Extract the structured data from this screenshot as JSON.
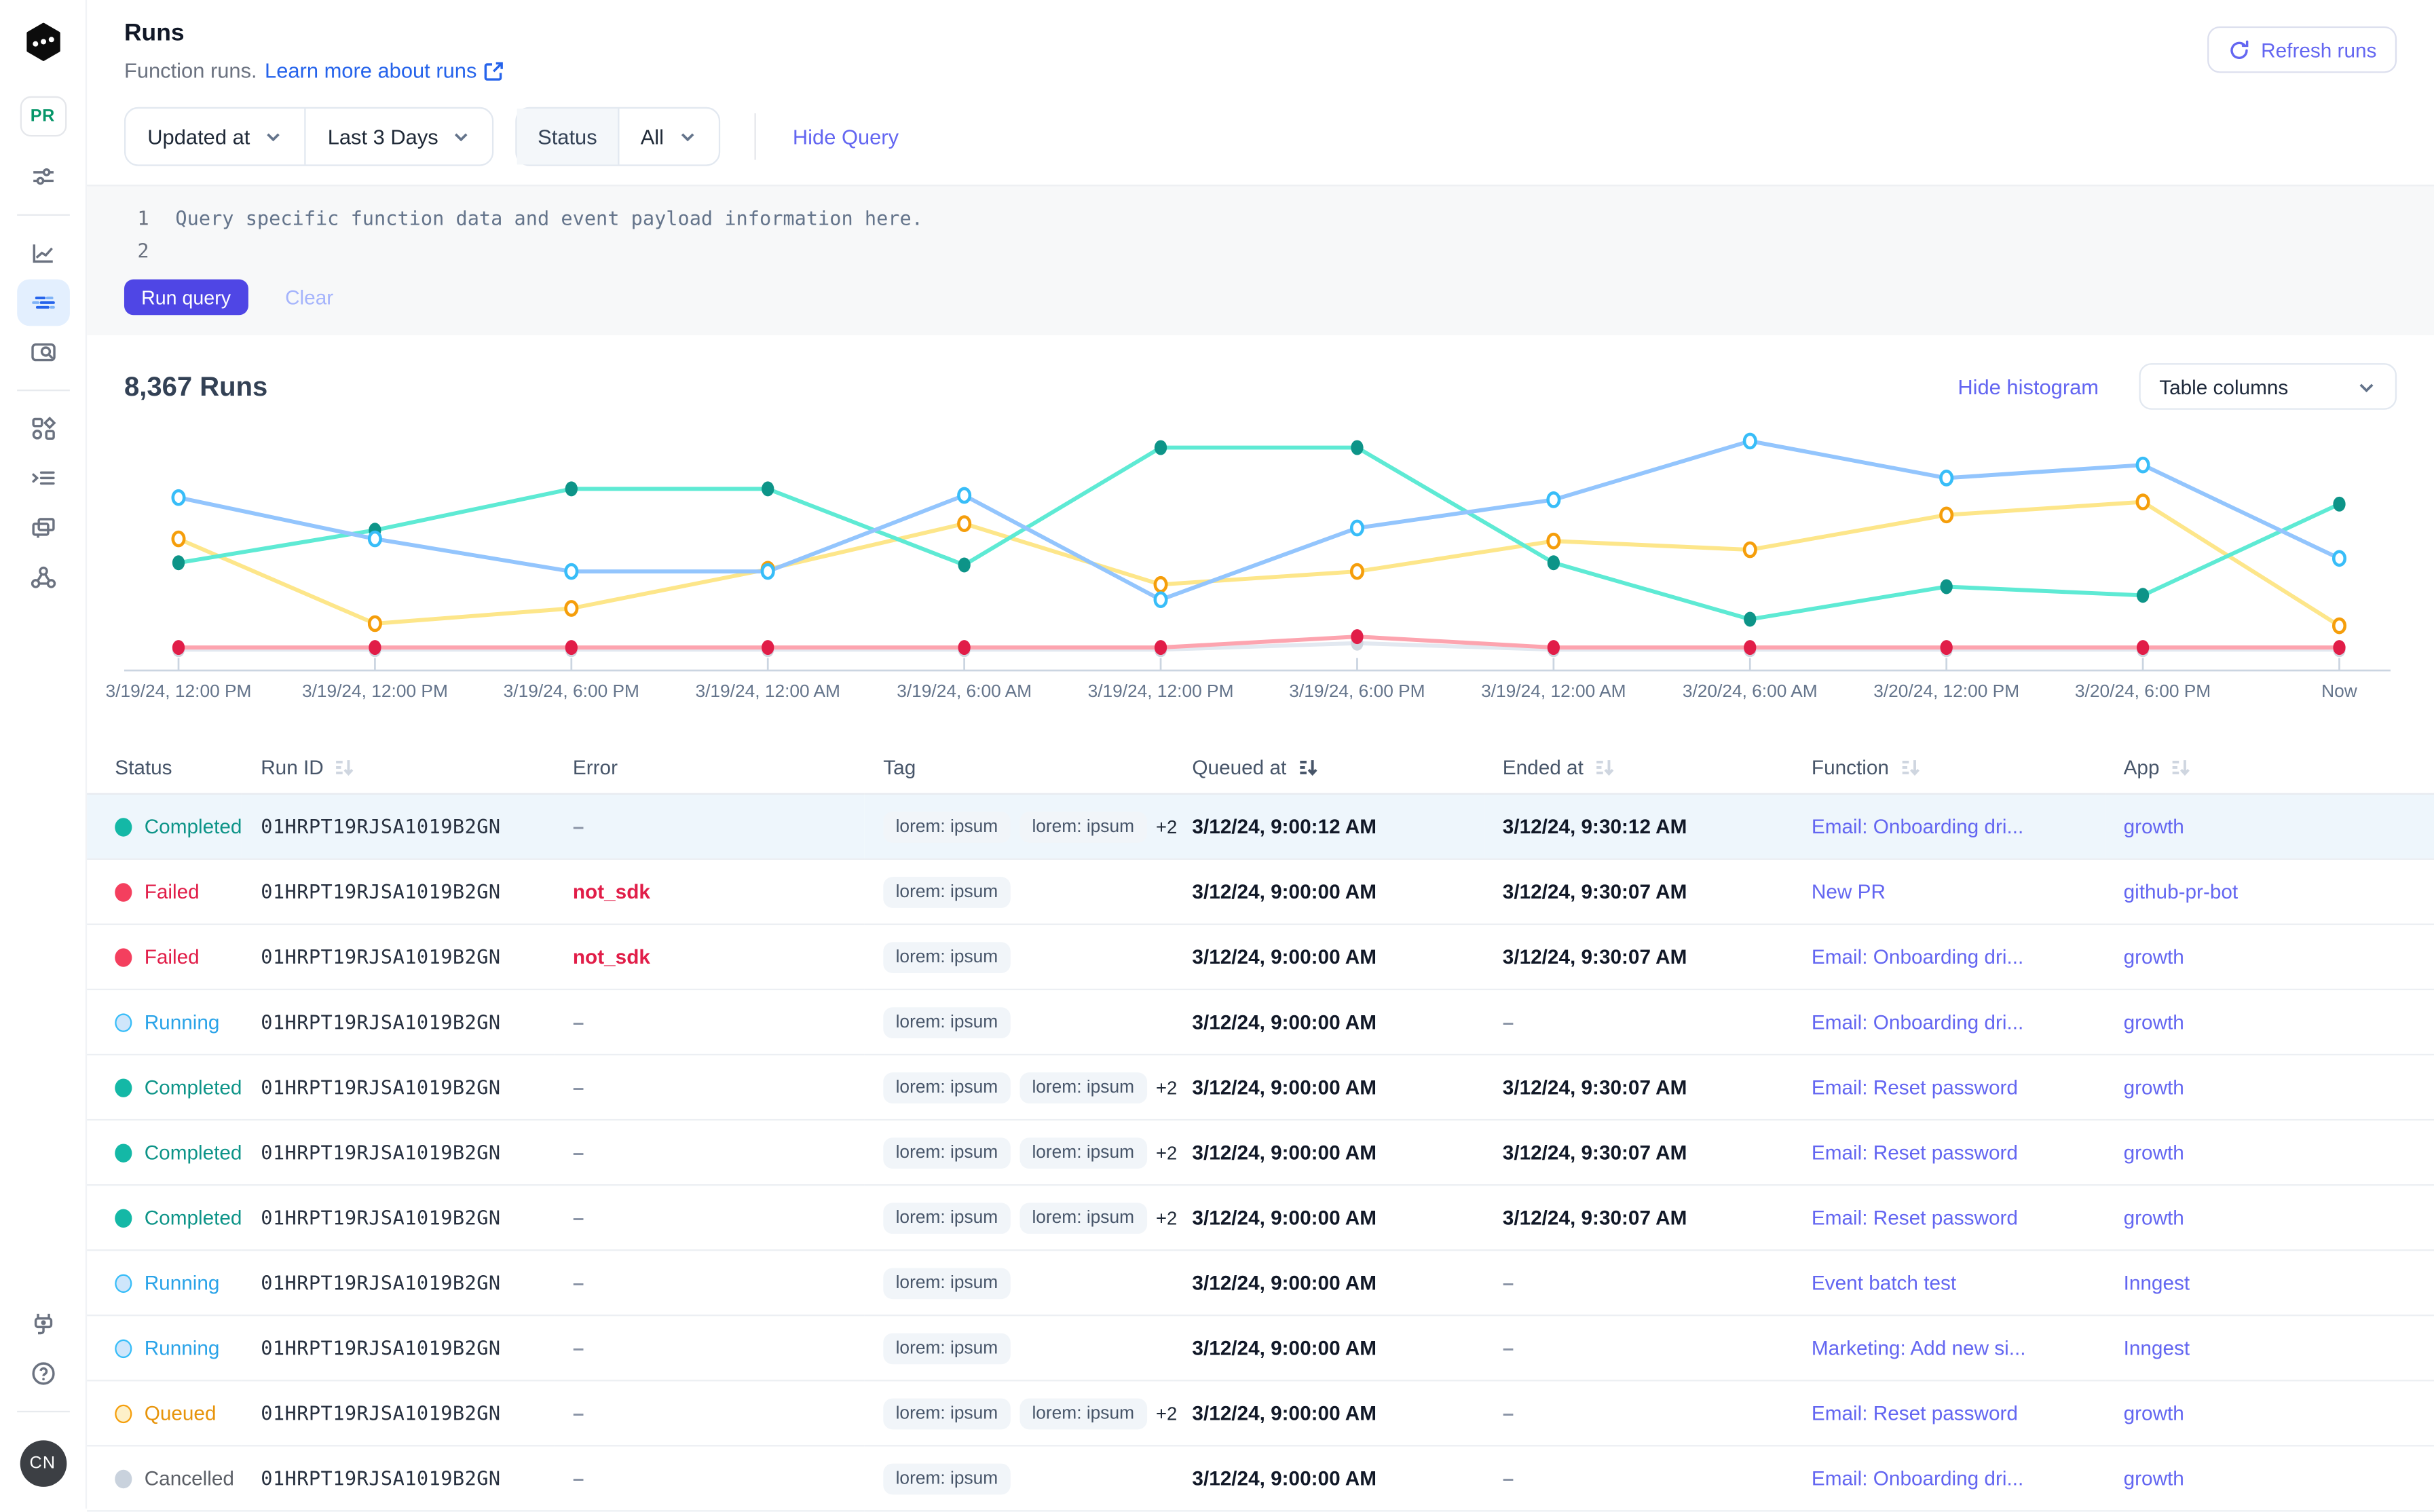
{
  "sidebar": {
    "logo_icon": "inngest-logo",
    "env_badge": "PR",
    "nav_icons": [
      "filter-sliders-icon",
      "metrics-icon",
      "runs-icon",
      "event-search-icon",
      "apps-icon",
      "events-icon",
      "functions-icon",
      "webhooks-icon"
    ],
    "active_nav": "runs-icon",
    "footer_icons": [
      "integrations-plug-icon",
      "help-icon"
    ],
    "user_initials": "CN"
  },
  "header": {
    "title": "Runs",
    "subtitle": "Function runs.",
    "learn_more_label": "Learn more about runs",
    "refresh_label": "Refresh runs"
  },
  "filters": {
    "field_value": "Updated at",
    "range_value": "Last 3 Days",
    "status_label": "Status",
    "status_value": "All",
    "hide_query_label": "Hide Query"
  },
  "query": {
    "line_numbers": [
      "1",
      "2"
    ],
    "lines": [
      "Query specific function data and event payload information here.",
      ""
    ],
    "run_label": "Run query",
    "clear_label": "Clear"
  },
  "results": {
    "count_label": "8,367 Runs",
    "hide_histogram_label": "Hide histogram",
    "table_columns_label": "Table columns"
  },
  "chart_data": {
    "type": "line",
    "title": "",
    "xlabel": "",
    "ylabel": "",
    "grid": false,
    "legend": "none",
    "ylim": [
      0,
      100
    ],
    "x_labels": [
      "3/19/24, 12:00 PM",
      "3/19/24, 12:00 PM",
      "3/19/24, 6:00 PM",
      "3/19/24, 12:00 AM",
      "3/19/24, 6:00 AM",
      "3/19/24, 12:00 PM",
      "3/19/24, 6:00 PM",
      "3/19/24, 12:00 AM",
      "3/20/24, 6:00 AM",
      "3/20/24, 12:00 PM",
      "3/20/24, 6:00 PM",
      "Now"
    ],
    "series": [
      {
        "name": "Cancelled",
        "line_color": "#e2e8f0",
        "dot_color": "#cfd6df",
        "marker": "solid",
        "values": [
          1,
          1,
          1,
          1,
          1,
          1,
          4,
          1,
          1,
          1,
          1,
          1
        ]
      },
      {
        "name": "Failed",
        "line_color": "#fda4af",
        "dot_color": "#e11d48",
        "marker": "solid",
        "values": [
          2,
          2,
          2,
          2,
          2,
          2,
          7,
          2,
          2,
          2,
          2,
          2
        ]
      },
      {
        "name": "Queued",
        "line_color": "#fde68a",
        "dot_color": "#f59e0b",
        "marker": "hollow",
        "values": [
          52,
          13,
          20,
          38,
          59,
          31,
          37,
          51,
          47,
          63,
          69,
          12
        ]
      },
      {
        "name": "Completed",
        "line_color": "#5eead4",
        "dot_color": "#0d9488",
        "marker": "solid",
        "values": [
          41,
          56,
          75,
          75,
          40,
          94,
          94,
          41,
          15,
          30,
          26,
          68
        ]
      },
      {
        "name": "Running",
        "line_color": "#93c5fd",
        "dot_color": "#38bdf8",
        "marker": "hollow",
        "values": [
          71,
          52,
          37,
          37,
          72,
          24,
          57,
          70,
          97,
          80,
          86,
          43
        ]
      }
    ],
    "axis_color": "#cbd5e1",
    "label_color": "#64748b"
  },
  "table": {
    "columns": [
      {
        "label": "Status",
        "sort": null
      },
      {
        "label": "Run ID",
        "sort": "inactive"
      },
      {
        "label": "Error",
        "sort": null
      },
      {
        "label": "Tag",
        "sort": null
      },
      {
        "label": "Queued at",
        "sort": "active"
      },
      {
        "label": "Ended at",
        "sort": "inactive"
      },
      {
        "label": "Function",
        "sort": "inactive"
      },
      {
        "label": "App",
        "sort": "inactive"
      }
    ],
    "status_styles": {
      "completed": {
        "dot": "#14b8a6",
        "border": "",
        "text": "#0d9488"
      },
      "failed": {
        "dot": "#f43f5e",
        "border": "",
        "text": "#e11d48"
      },
      "running": {
        "dot": "#cfe6fb",
        "border": "#38bdf8",
        "text": "#2aa3e8"
      },
      "queued": {
        "dot": "#fdf0c9",
        "border": "#f59e0b",
        "text": "#e7940b"
      },
      "cancelled": {
        "dot": "#c9d2dd",
        "border": "",
        "text": "#5b5f66"
      }
    },
    "rows": [
      {
        "status": "Completed",
        "type": "completed",
        "run_id": "01HRPT19RJSA1019B2GN",
        "error": "–",
        "tags": [
          "lorem: ipsum",
          "lorem: ipsum"
        ],
        "tags_more": "+2",
        "queued_at": "3/12/24, 9:00:12 AM",
        "ended_at": "3/12/24, 9:30:12 AM",
        "function": "Email: Onboarding dri...",
        "app": "growth",
        "highlighted": true
      },
      {
        "status": "Failed",
        "type": "failed",
        "run_id": "01HRPT19RJSA1019B2GN",
        "error": "not_sdk",
        "tags": [
          "lorem: ipsum"
        ],
        "tags_more": "",
        "queued_at": "3/12/24, 9:00:00 AM",
        "ended_at": "3/12/24, 9:30:07 AM",
        "function": "New PR",
        "app": "github-pr-bot",
        "highlighted": false
      },
      {
        "status": "Failed",
        "type": "failed",
        "run_id": "01HRPT19RJSA1019B2GN",
        "error": "not_sdk",
        "tags": [
          "lorem: ipsum"
        ],
        "tags_more": "",
        "queued_at": "3/12/24, 9:00:00 AM",
        "ended_at": "3/12/24, 9:30:07 AM",
        "function": "Email: Onboarding dri...",
        "app": "growth",
        "highlighted": false
      },
      {
        "status": "Running",
        "type": "running",
        "run_id": "01HRPT19RJSA1019B2GN",
        "error": "–",
        "tags": [
          "lorem: ipsum"
        ],
        "tags_more": "",
        "queued_at": "3/12/24, 9:00:00 AM",
        "ended_at": "–",
        "function": "Email: Onboarding dri...",
        "app": "growth",
        "highlighted": false
      },
      {
        "status": "Completed",
        "type": "completed",
        "run_id": "01HRPT19RJSA1019B2GN",
        "error": "–",
        "tags": [
          "lorem: ipsum",
          "lorem: ipsum"
        ],
        "tags_more": "+2",
        "queued_at": "3/12/24, 9:00:00 AM",
        "ended_at": "3/12/24, 9:30:07 AM",
        "function": "Email: Reset password",
        "app": "growth",
        "highlighted": false
      },
      {
        "status": "Completed",
        "type": "completed",
        "run_id": "01HRPT19RJSA1019B2GN",
        "error": "–",
        "tags": [
          "lorem: ipsum",
          "lorem: ipsum"
        ],
        "tags_more": "+2",
        "queued_at": "3/12/24, 9:00:00 AM",
        "ended_at": "3/12/24, 9:30:07 AM",
        "function": "Email: Reset password",
        "app": "growth",
        "highlighted": false
      },
      {
        "status": "Completed",
        "type": "completed",
        "run_id": "01HRPT19RJSA1019B2GN",
        "error": "–",
        "tags": [
          "lorem: ipsum",
          "lorem: ipsum"
        ],
        "tags_more": "+2",
        "queued_at": "3/12/24, 9:00:00 AM",
        "ended_at": "3/12/24, 9:30:07 AM",
        "function": "Email: Reset password",
        "app": "growth",
        "highlighted": false
      },
      {
        "status": "Running",
        "type": "running",
        "run_id": "01HRPT19RJSA1019B2GN",
        "error": "–",
        "tags": [
          "lorem: ipsum"
        ],
        "tags_more": "",
        "queued_at": "3/12/24, 9:00:00 AM",
        "ended_at": "–",
        "function": "Event batch test",
        "app": "Inngest",
        "highlighted": false
      },
      {
        "status": "Running",
        "type": "running",
        "run_id": "01HRPT19RJSA1019B2GN",
        "error": "–",
        "tags": [
          "lorem: ipsum"
        ],
        "tags_more": "",
        "queued_at": "3/12/24, 9:00:00 AM",
        "ended_at": "–",
        "function": "Marketing: Add new si...",
        "app": "Inngest",
        "highlighted": false
      },
      {
        "status": "Queued",
        "type": "queued",
        "run_id": "01HRPT19RJSA1019B2GN",
        "error": "–",
        "tags": [
          "lorem: ipsum",
          "lorem: ipsum"
        ],
        "tags_more": "+2",
        "queued_at": "3/12/24, 9:00:00 AM",
        "ended_at": "–",
        "function": "Email: Reset password",
        "app": "growth",
        "highlighted": false
      },
      {
        "status": "Cancelled",
        "type": "cancelled",
        "run_id": "01HRPT19RJSA1019B2GN",
        "error": "–",
        "tags": [
          "lorem: ipsum"
        ],
        "tags_more": "",
        "queued_at": "3/12/24, 9:00:00 AM",
        "ended_at": "–",
        "function": "Email: Onboarding dri...",
        "app": "growth",
        "highlighted": false
      }
    ]
  }
}
